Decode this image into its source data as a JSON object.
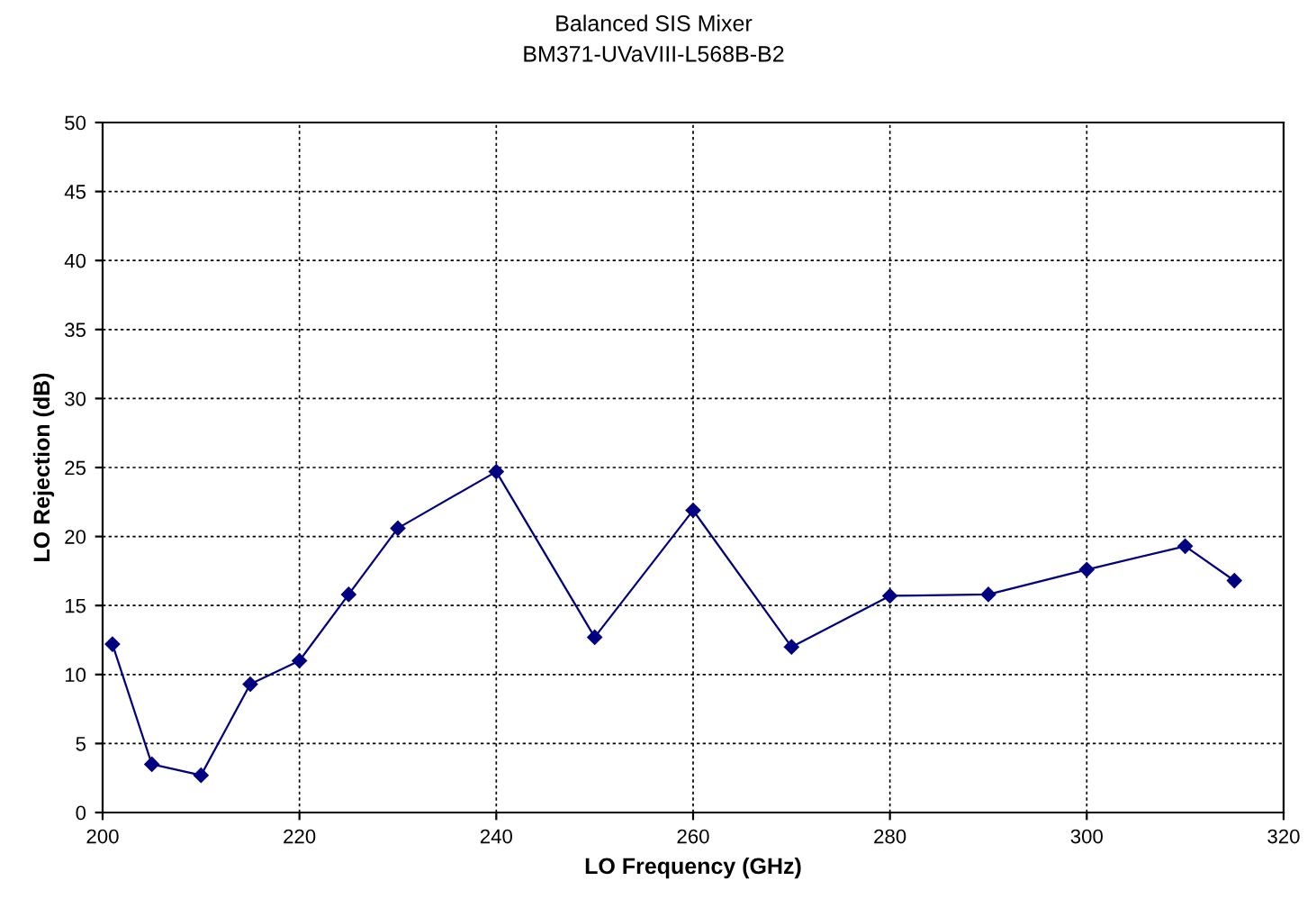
{
  "chart_data": {
    "type": "line",
    "title": "Balanced SIS Mixer",
    "subtitle": "BM371-UVaVIII-L568B-B2",
    "xlabel": "LO Frequency (GHz)",
    "ylabel": "LO Rejection (dB)",
    "x": [
      201,
      205,
      210,
      215,
      220,
      225,
      230,
      240,
      250,
      260,
      270,
      280,
      290,
      300,
      310,
      315
    ],
    "series": [
      {
        "color": "#000080",
        "values": [
          12.2,
          3.5,
          2.7,
          9.3,
          11.0,
          15.8,
          20.6,
          24.7,
          12.7,
          21.9,
          12.0,
          15.7,
          15.8,
          17.6,
          19.3,
          16.8
        ]
      }
    ],
    "xlim": [
      200,
      320
    ],
    "xticks": [
      200,
      220,
      240,
      260,
      280,
      300,
      320
    ],
    "ylim": [
      0,
      50
    ],
    "yticks": [
      0,
      5,
      10,
      15,
      20,
      25,
      30,
      35,
      40,
      45,
      50
    ],
    "grid": true,
    "legend": false,
    "marker": "diamond",
    "line_style": "solid"
  }
}
